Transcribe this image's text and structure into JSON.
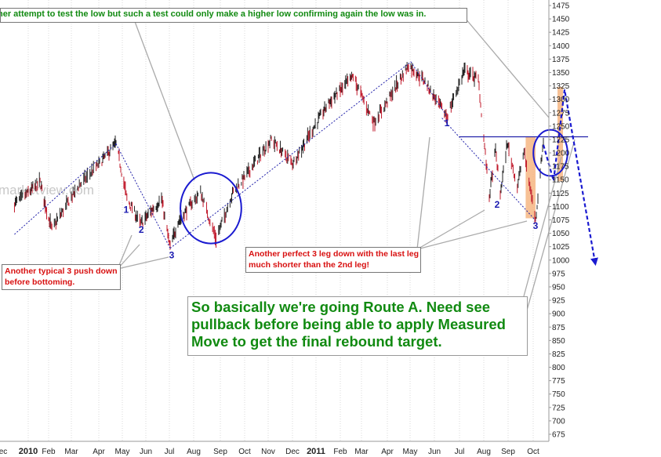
{
  "annotations": {
    "top": "her attempt to test the low but such a test could only make a higher low confirming again the low was in.",
    "left": "Another typical 3 push down before bottoming.",
    "middle": "Another perfect 3 leg down with the last leg much shorter than the 2nd leg!",
    "main": "So basically we're going Route A. Need see pullback before being able to apply Measured Move to get the final rebound target."
  },
  "watermark": "marketview.com",
  "wave_labels": [
    "1",
    "2",
    "3",
    "1",
    "2",
    "3"
  ],
  "colors": {
    "price": "#222222",
    "down_bar": "#c0182a",
    "trendline": "#2222aa",
    "circle": "#1a1ad0",
    "projection": "#1a1ad0",
    "highlight": "#f5b27a",
    "green_text": "#118a11",
    "red_text": "#d81010"
  },
  "chart_data": {
    "type": "bar",
    "y_axis": {
      "range": [
        665,
        1475
      ],
      "tick_step": 25,
      "ticks": [
        "1475",
        "1450",
        "1425",
        "1400",
        "1375",
        "1350",
        "1325",
        "1300",
        "1275",
        "1250",
        "1225",
        "1200",
        "1175",
        "1150",
        "1125",
        "1100",
        "1075",
        "1050",
        "1025",
        "1000",
        "975",
        "950",
        "925",
        "900",
        "875",
        "850",
        "825",
        "800",
        "775",
        "750",
        "725",
        "700",
        "675"
      ]
    },
    "x_axis": {
      "labels": [
        "ec",
        "2010",
        "Feb",
        "Mar",
        "Apr",
        "May",
        "Jun",
        "Jul",
        "Aug",
        "Sep",
        "Oct",
        "Nov",
        "Dec",
        "2011",
        "Feb",
        "Mar",
        "Apr",
        "May",
        "Jun",
        "Jul",
        "Aug",
        "Sep",
        "Oct"
      ],
      "bold_labels": [
        "2010",
        "2011"
      ]
    },
    "price_path": [
      [
        "2009-12-15",
        1105
      ],
      [
        "2010-01-19",
        1146
      ],
      [
        "2010-02-05",
        1057
      ],
      [
        "2010-03-10",
        1140
      ],
      [
        "2010-04-23",
        1217
      ],
      [
        "2010-05-07",
        1115
      ],
      [
        "2010-05-25",
        1067
      ],
      [
        "2010-06-21",
        1114
      ],
      [
        "2010-07-02",
        1022
      ],
      [
        "2010-07-12",
        1072
      ],
      [
        "2010-08-09",
        1126
      ],
      [
        "2010-08-27",
        1040
      ],
      [
        "2010-09-16",
        1125
      ],
      [
        "2010-11-05",
        1225
      ],
      [
        "2010-12-01",
        1180
      ],
      [
        "2011-01-18",
        1295
      ],
      [
        "2011-02-18",
        1343
      ],
      [
        "2011-03-16",
        1257
      ],
      [
        "2011-04-29",
        1364
      ],
      [
        "2011-05-20",
        1333
      ],
      [
        "2011-06-16",
        1268
      ],
      [
        "2011-07-07",
        1354
      ],
      [
        "2011-07-25",
        1337
      ],
      [
        "2011-08-08",
        1119
      ],
      [
        "2011-08-16",
        1205
      ],
      [
        "2011-08-22",
        1123
      ],
      [
        "2011-08-31",
        1218
      ],
      [
        "2011-09-12",
        1137
      ],
      [
        "2011-09-20",
        1202
      ],
      [
        "2011-10-04",
        1074
      ],
      [
        "2011-10-14",
        1224
      ]
    ],
    "trendlines": [
      [
        [
          "2009-12-15",
          1048
        ],
        [
          "2010-04-23",
          1217
        ]
      ],
      [
        [
          "2010-04-23",
          1217
        ],
        [
          "2010-07-02",
          1022
        ]
      ],
      [
        [
          "2010-07-02",
          1022
        ],
        [
          "2011-05-02",
          1370
        ]
      ],
      [
        [
          "2011-05-02",
          1370
        ],
        [
          "2011-06-16",
          1268
        ]
      ],
      [
        [
          "2011-06-10",
          1265
        ],
        [
          "2011-10-04",
          1074
        ]
      ]
    ],
    "horizontal_line": [
      [
        "2011-07-01",
        1230
      ],
      [
        "2011-12-10",
        1230
      ]
    ],
    "circles": [
      {
        "center": [
          "2010-08-21",
          1097
        ],
        "radius_days": 25,
        "radius_value": 66
      },
      {
        "center": [
          "2011-10-23",
          1200
        ],
        "radius_days": 14,
        "radius_value": 43
      }
    ],
    "projection_path": [
      [
        "2011-10-14",
        1215
      ],
      [
        "2011-10-27",
        1148
      ],
      [
        "2011-11-10",
        1318
      ],
      [
        "2011-12-19",
        995
      ]
    ],
    "highlights": [
      {
        "x": [
          "2011-09-22",
          "2011-10-04"
        ],
        "y": [
          1078,
          1230
        ]
      },
      {
        "x": [
          "2011-11-01",
          "2011-11-08"
        ],
        "y": [
          1147,
          1323
        ]
      }
    ],
    "wave_points": [
      [
        "2010-05-06",
        1088
      ],
      [
        "2010-05-26",
        1051
      ],
      [
        "2010-07-04",
        1003
      ],
      [
        "2011-06-16",
        1250
      ],
      [
        "2011-08-18",
        1098
      ],
      [
        "2011-10-04",
        1058
      ]
    ]
  }
}
